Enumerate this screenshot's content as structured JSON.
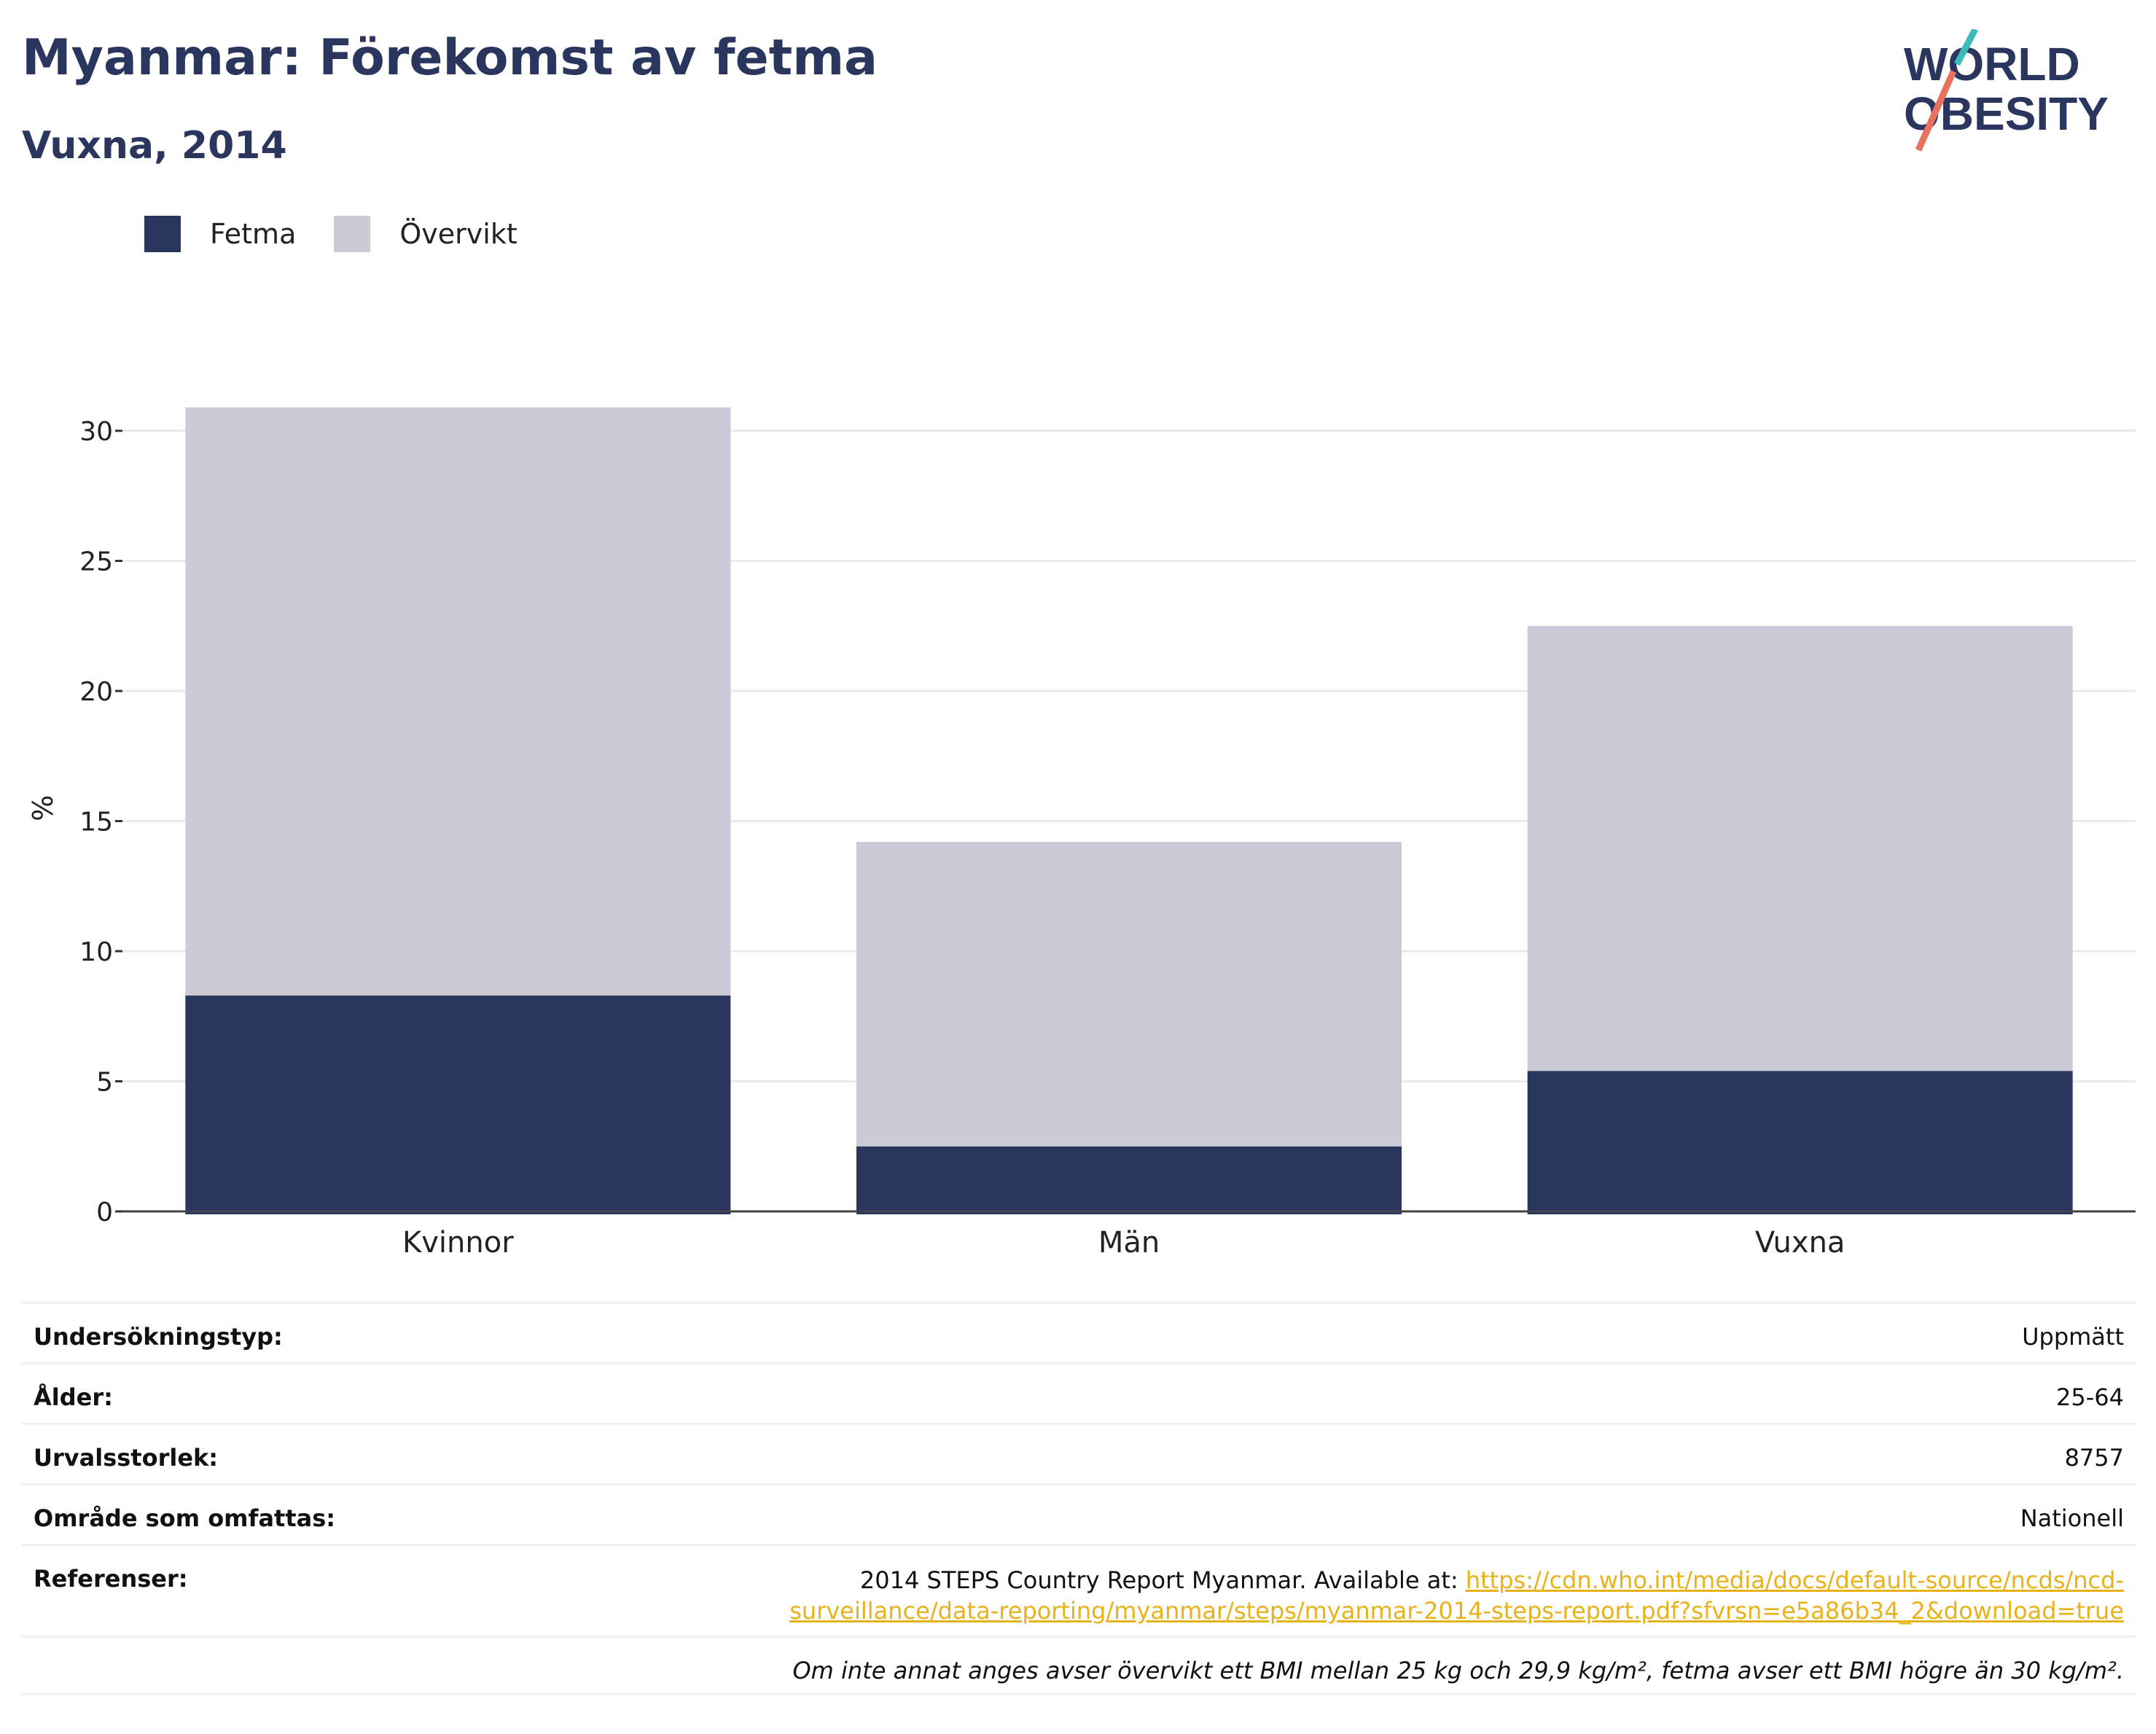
{
  "title": "Myanmar: Förekomst av fetma",
  "subtitle": "Vuxna, 2014",
  "logo": {
    "line1": "WORLD",
    "line2": "OBESITY"
  },
  "colors": {
    "fetma": "#2a365e",
    "overvikt": "#cacbd6",
    "accent_teal": "#3cbcb8",
    "accent_coral": "#e8725e",
    "link": "#e8b21a"
  },
  "legend": [
    {
      "name": "Fetma",
      "color": "#2a365e"
    },
    {
      "name": "Övervikt",
      "color": "#cacbd6"
    }
  ],
  "chart_data": {
    "type": "bar",
    "stacked": true,
    "categories": [
      "Kvinnor",
      "Män",
      "Vuxna"
    ],
    "series": [
      {
        "name": "Fetma",
        "values": [
          8.3,
          2.5,
          5.4
        ]
      },
      {
        "name": "Övervikt",
        "values": [
          22.6,
          11.7,
          17.1
        ]
      }
    ],
    "ylabel": "%",
    "ylim": [
      0,
      31
    ],
    "yticks": [
      0,
      5,
      10,
      15,
      20,
      25,
      30
    ],
    "grid": true,
    "legend_position": "top-left"
  },
  "info": {
    "rows": [
      {
        "key": "Undersökningstyp:",
        "value": "Uppmätt"
      },
      {
        "key": "Ålder:",
        "value": "25-64"
      },
      {
        "key": "Urvalsstorlek:",
        "value": "8757"
      },
      {
        "key": "Område som omfattas:",
        "value": "Nationell"
      }
    ],
    "references": {
      "key": "Referenser:",
      "text": "2014 STEPS Country Report Myanmar. Available at: ",
      "link": "https://cdn.who.int/media/docs/default-source/ncds/ncd-surveillance/data-reporting/myanmar/steps/myanmar-2014-steps-report.pdf?sfvrsn=e5a86b34_2&download=true"
    },
    "note": "Om inte annat anges avser övervikt ett BMI mellan 25 kg och 29,9 kg/m², fetma avser ett BMI högre än 30 kg/m²."
  }
}
